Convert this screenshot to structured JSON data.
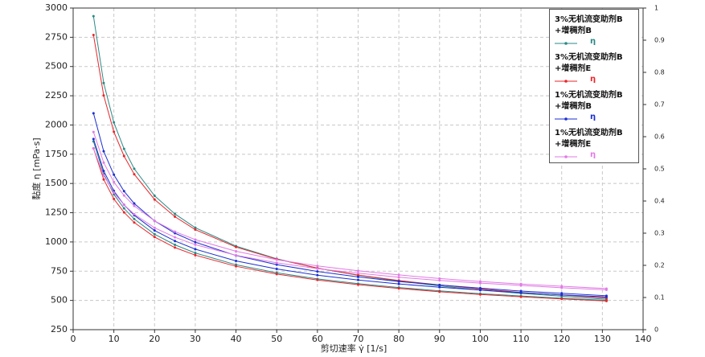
{
  "chart_data": {
    "type": "line",
    "xlabel": "剪切速率 γ̇ [1/s]",
    "ylabel": "黏度 η [mPa·s]",
    "xlim": [
      0,
      140
    ],
    "xticks": [
      0,
      10,
      20,
      30,
      40,
      50,
      60,
      70,
      80,
      90,
      100,
      110,
      120,
      130,
      140
    ],
    "ylim": [
      250,
      3000
    ],
    "yticks": [
      250,
      500,
      750,
      1000,
      1250,
      1500,
      1750,
      2000,
      2250,
      2500,
      2750,
      3000
    ],
    "y2lim": [
      0,
      1
    ],
    "y2ticks": [
      0,
      0.1,
      0.2,
      0.3,
      0.4,
      0.5,
      0.6,
      0.7,
      0.8,
      0.9,
      1
    ],
    "grid": true,
    "legend": "upper right",
    "x": [
      5,
      7.5,
      10,
      12.5,
      15,
      20,
      25,
      30,
      40,
      50,
      60,
      70,
      80,
      90,
      100,
      110,
      120,
      131,
      131,
      120,
      110,
      100,
      90,
      80,
      70,
      60,
      50,
      40,
      30,
      25,
      20,
      15,
      12.5,
      10,
      7.5,
      5
    ],
    "series": [
      {
        "name": "3%无机流变助剂B\n+增稠剂B",
        "symbol_label": "η",
        "color": "#2a8a86",
        "values": [
          2930,
          2359,
          2022,
          1796,
          1626,
          1395,
          1239,
          1122,
          964,
          856,
          776,
          715,
          665,
          624,
          589,
          560,
          536,
          510,
          500,
          519,
          538,
          558,
          582,
          610,
          644,
          684,
          737,
          805,
          906,
          975,
          1066,
          1196,
          1287,
          1408,
          1581,
          1860
        ]
      },
      {
        "name": "3%无机流变助剂B\n+增稠剂E",
        "symbol_label": "η",
        "color": "#e8262a",
        "values": [
          2770,
          2252,
          1942,
          1734,
          1579,
          1363,
          1216,
          1105,
          956,
          853,
          776,
          717,
          670,
          632,
          598,
          568,
          546,
          521,
          495,
          513,
          531,
          551,
          574,
          603,
          635,
          675,
          725,
          792,
          887,
          952,
          1042,
          1166,
          1253,
          1368,
          1534,
          1800
        ]
      },
      {
        "name": "1%无机流变助剂B\n+增稠剂B",
        "symbol_label": "η",
        "color": "#1a2fd0",
        "values": [
          2100,
          1775,
          1575,
          1434,
          1329,
          1180,
          1075,
          998,
          884,
          806,
          748,
          701,
          662,
          632,
          605,
          580,
          561,
          540,
          530,
          547,
          566,
          588,
          613,
          641,
          675,
          716,
          769,
          838,
          938,
          1008,
          1098,
          1228,
          1318,
          1436,
          1607,
          1880
        ]
      },
      {
        "name": "1%无机流变助剂B\n+增稠剂E",
        "symbol_label": "η",
        "color": "#e27ae6",
        "values": [
          1940,
          1678,
          1513,
          1397,
          1308,
          1180,
          1088,
          1020,
          920,
          848,
          795,
          753,
          718,
          687,
          662,
          640,
          621,
          601,
          590,
          608,
          628,
          648,
          671,
          698,
          733,
          772,
          821,
          886,
          977,
          1040,
          1121,
          1237,
          1318,
          1422,
          1568,
          1800
        ]
      }
    ]
  }
}
